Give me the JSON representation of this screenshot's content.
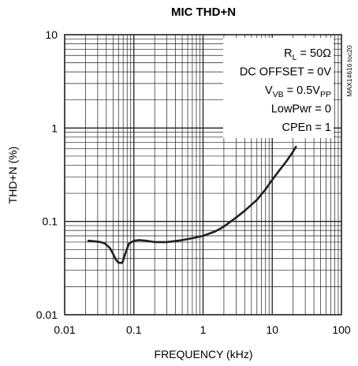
{
  "chart_data": {
    "type": "line",
    "title": "MIC THD+N",
    "xlabel": "FREQUENCY (kHz)",
    "ylabel": "THD+N (%)",
    "x_scale": "log",
    "y_scale": "log",
    "xlim": [
      0.01,
      100
    ],
    "ylim": [
      0.01,
      10
    ],
    "grid": true,
    "xticks": [
      "0.01",
      "0.1",
      "1",
      "10",
      "100"
    ],
    "yticks": [
      "0.01",
      "0.1",
      "1",
      "10"
    ],
    "conditions": [
      {
        "prefix": "R",
        "sub": "L",
        "suffix": " = 50Ω",
        "sub2": "",
        "suffix2": ""
      },
      {
        "prefix": "DC OFFSET = 0V",
        "sub": "",
        "suffix": "",
        "sub2": "",
        "suffix2": ""
      },
      {
        "prefix": "V",
        "sub": "VB",
        "suffix": " = 0.5V",
        "sub2": "PP",
        "suffix2": ""
      },
      {
        "prefix": "LowPwr = 0",
        "sub": "",
        "suffix": "",
        "sub2": "",
        "suffix2": ""
      },
      {
        "prefix": "CPEn = 1",
        "sub": "",
        "suffix": "",
        "sub2": "",
        "suffix2": ""
      }
    ],
    "figure_id": "MAX14616 toc20",
    "series": [
      {
        "color": "#231f20",
        "x": [
          0.022,
          0.028,
          0.033,
          0.038,
          0.045,
          0.05,
          0.055,
          0.06,
          0.068,
          0.075,
          0.085,
          0.1,
          0.12,
          0.15,
          0.2,
          0.3,
          0.5,
          0.7,
          1,
          1.5,
          2,
          3,
          4,
          6,
          8,
          10,
          13,
          16,
          20,
          22
        ],
        "y": [
          0.062,
          0.061,
          0.06,
          0.058,
          0.052,
          0.045,
          0.039,
          0.036,
          0.036,
          0.045,
          0.058,
          0.062,
          0.063,
          0.062,
          0.06,
          0.06,
          0.063,
          0.066,
          0.07,
          0.078,
          0.088,
          0.11,
          0.13,
          0.17,
          0.22,
          0.28,
          0.36,
          0.44,
          0.56,
          0.63
        ]
      }
    ]
  }
}
